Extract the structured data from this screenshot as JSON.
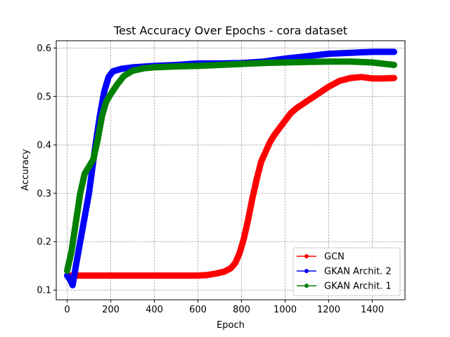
{
  "chart_data": {
    "type": "line",
    "title": "Test Accuracy Over Epochs - cora dataset",
    "xlabel": "Epoch",
    "ylabel": "Accuracy",
    "xlim": [
      -50,
      1550
    ],
    "ylim": [
      0.08,
      0.615
    ],
    "xticks": [
      0,
      200,
      400,
      600,
      800,
      1000,
      1200,
      1400
    ],
    "yticks": [
      0.1,
      0.2,
      0.3,
      0.4,
      0.5,
      0.6
    ],
    "ytick_labels": [
      "0.1",
      "0.2",
      "0.3",
      "0.4",
      "0.5",
      "0.6"
    ],
    "grid": true,
    "legend_position": "lower-right",
    "series": [
      {
        "name": "GCN",
        "color": "#ff0000",
        "points": [
          [
            0,
            0.13
          ],
          [
            50,
            0.13
          ],
          [
            100,
            0.13
          ],
          [
            200,
            0.13
          ],
          [
            300,
            0.13
          ],
          [
            400,
            0.13
          ],
          [
            500,
            0.13
          ],
          [
            600,
            0.13
          ],
          [
            640,
            0.131
          ],
          [
            680,
            0.134
          ],
          [
            720,
            0.138
          ],
          [
            750,
            0.145
          ],
          [
            770,
            0.155
          ],
          [
            790,
            0.175
          ],
          [
            810,
            0.205
          ],
          [
            830,
            0.245
          ],
          [
            850,
            0.29
          ],
          [
            870,
            0.33
          ],
          [
            890,
            0.365
          ],
          [
            910,
            0.385
          ],
          [
            930,
            0.405
          ],
          [
            950,
            0.42
          ],
          [
            975,
            0.435
          ],
          [
            1000,
            0.45
          ],
          [
            1025,
            0.465
          ],
          [
            1050,
            0.475
          ],
          [
            1100,
            0.49
          ],
          [
            1150,
            0.505
          ],
          [
            1200,
            0.52
          ],
          [
            1250,
            0.532
          ],
          [
            1300,
            0.538
          ],
          [
            1350,
            0.54
          ],
          [
            1400,
            0.537
          ],
          [
            1450,
            0.537
          ],
          [
            1500,
            0.538
          ]
        ]
      },
      {
        "name": "GKAN Archit. 2",
        "color": "#0000ff",
        "points": [
          [
            0,
            0.13
          ],
          [
            15,
            0.12
          ],
          [
            25,
            0.11
          ],
          [
            40,
            0.15
          ],
          [
            60,
            0.2
          ],
          [
            80,
            0.25
          ],
          [
            100,
            0.3
          ],
          [
            115,
            0.35
          ],
          [
            130,
            0.4
          ],
          [
            150,
            0.46
          ],
          [
            170,
            0.51
          ],
          [
            190,
            0.54
          ],
          [
            210,
            0.552
          ],
          [
            250,
            0.557
          ],
          [
            300,
            0.56
          ],
          [
            400,
            0.563
          ],
          [
            500,
            0.565
          ],
          [
            600,
            0.568
          ],
          [
            700,
            0.568
          ],
          [
            800,
            0.569
          ],
          [
            900,
            0.572
          ],
          [
            1000,
            0.578
          ],
          [
            1100,
            0.583
          ],
          [
            1200,
            0.588
          ],
          [
            1300,
            0.59
          ],
          [
            1400,
            0.592
          ],
          [
            1500,
            0.592
          ]
        ]
      },
      {
        "name": "GKAN Archit. 1",
        "color": "#008000",
        "points": [
          [
            0,
            0.14
          ],
          [
            20,
            0.18
          ],
          [
            40,
            0.24
          ],
          [
            60,
            0.3
          ],
          [
            80,
            0.34
          ],
          [
            100,
            0.355
          ],
          [
            120,
            0.37
          ],
          [
            140,
            0.41
          ],
          [
            160,
            0.46
          ],
          [
            180,
            0.49
          ],
          [
            200,
            0.505
          ],
          [
            230,
            0.525
          ],
          [
            260,
            0.542
          ],
          [
            300,
            0.553
          ],
          [
            350,
            0.558
          ],
          [
            400,
            0.56
          ],
          [
            500,
            0.562
          ],
          [
            600,
            0.563
          ],
          [
            700,
            0.565
          ],
          [
            800,
            0.567
          ],
          [
            900,
            0.569
          ],
          [
            1000,
            0.57
          ],
          [
            1100,
            0.571
          ],
          [
            1200,
            0.572
          ],
          [
            1300,
            0.572
          ],
          [
            1400,
            0.57
          ],
          [
            1500,
            0.565
          ]
        ]
      }
    ]
  }
}
